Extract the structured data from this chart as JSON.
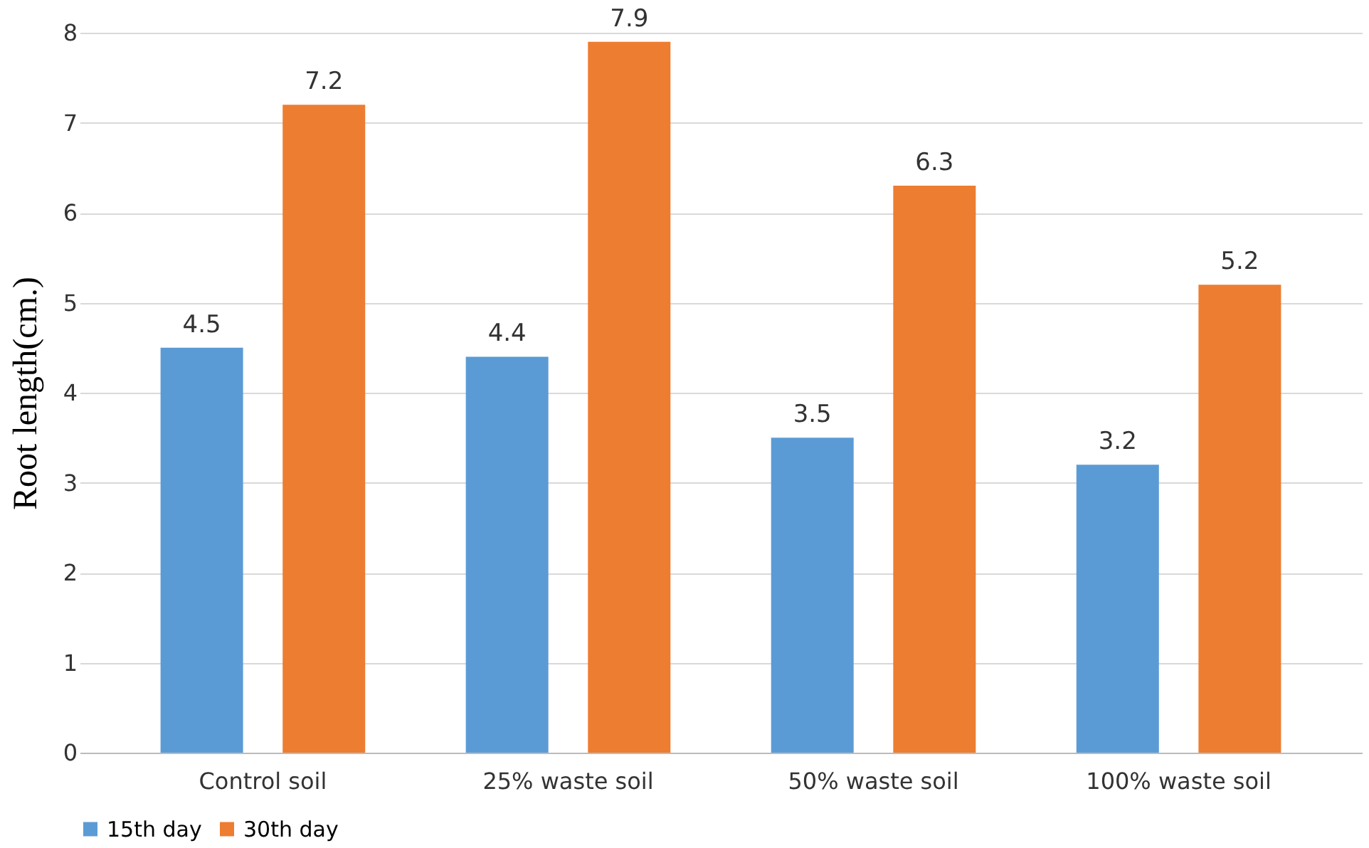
{
  "chart_data": {
    "type": "bar",
    "ylabel": "Root length(cm.)",
    "categories": [
      "Control soil",
      "25% waste soil",
      "50% waste soil",
      "100% waste soil"
    ],
    "series": [
      {
        "name": "15th day",
        "color": "#5b9bd5",
        "values": [
          4.5,
          4.4,
          3.5,
          3.2
        ]
      },
      {
        "name": "30th day",
        "color": "#ed7d31",
        "values": [
          7.2,
          7.9,
          6.3,
          5.2
        ]
      }
    ],
    "ylim": [
      0,
      8
    ],
    "yticks": [
      0,
      1,
      2,
      3,
      4,
      5,
      6,
      7,
      8
    ],
    "grid": "y",
    "legend": "bottom",
    "data_labels": true
  }
}
